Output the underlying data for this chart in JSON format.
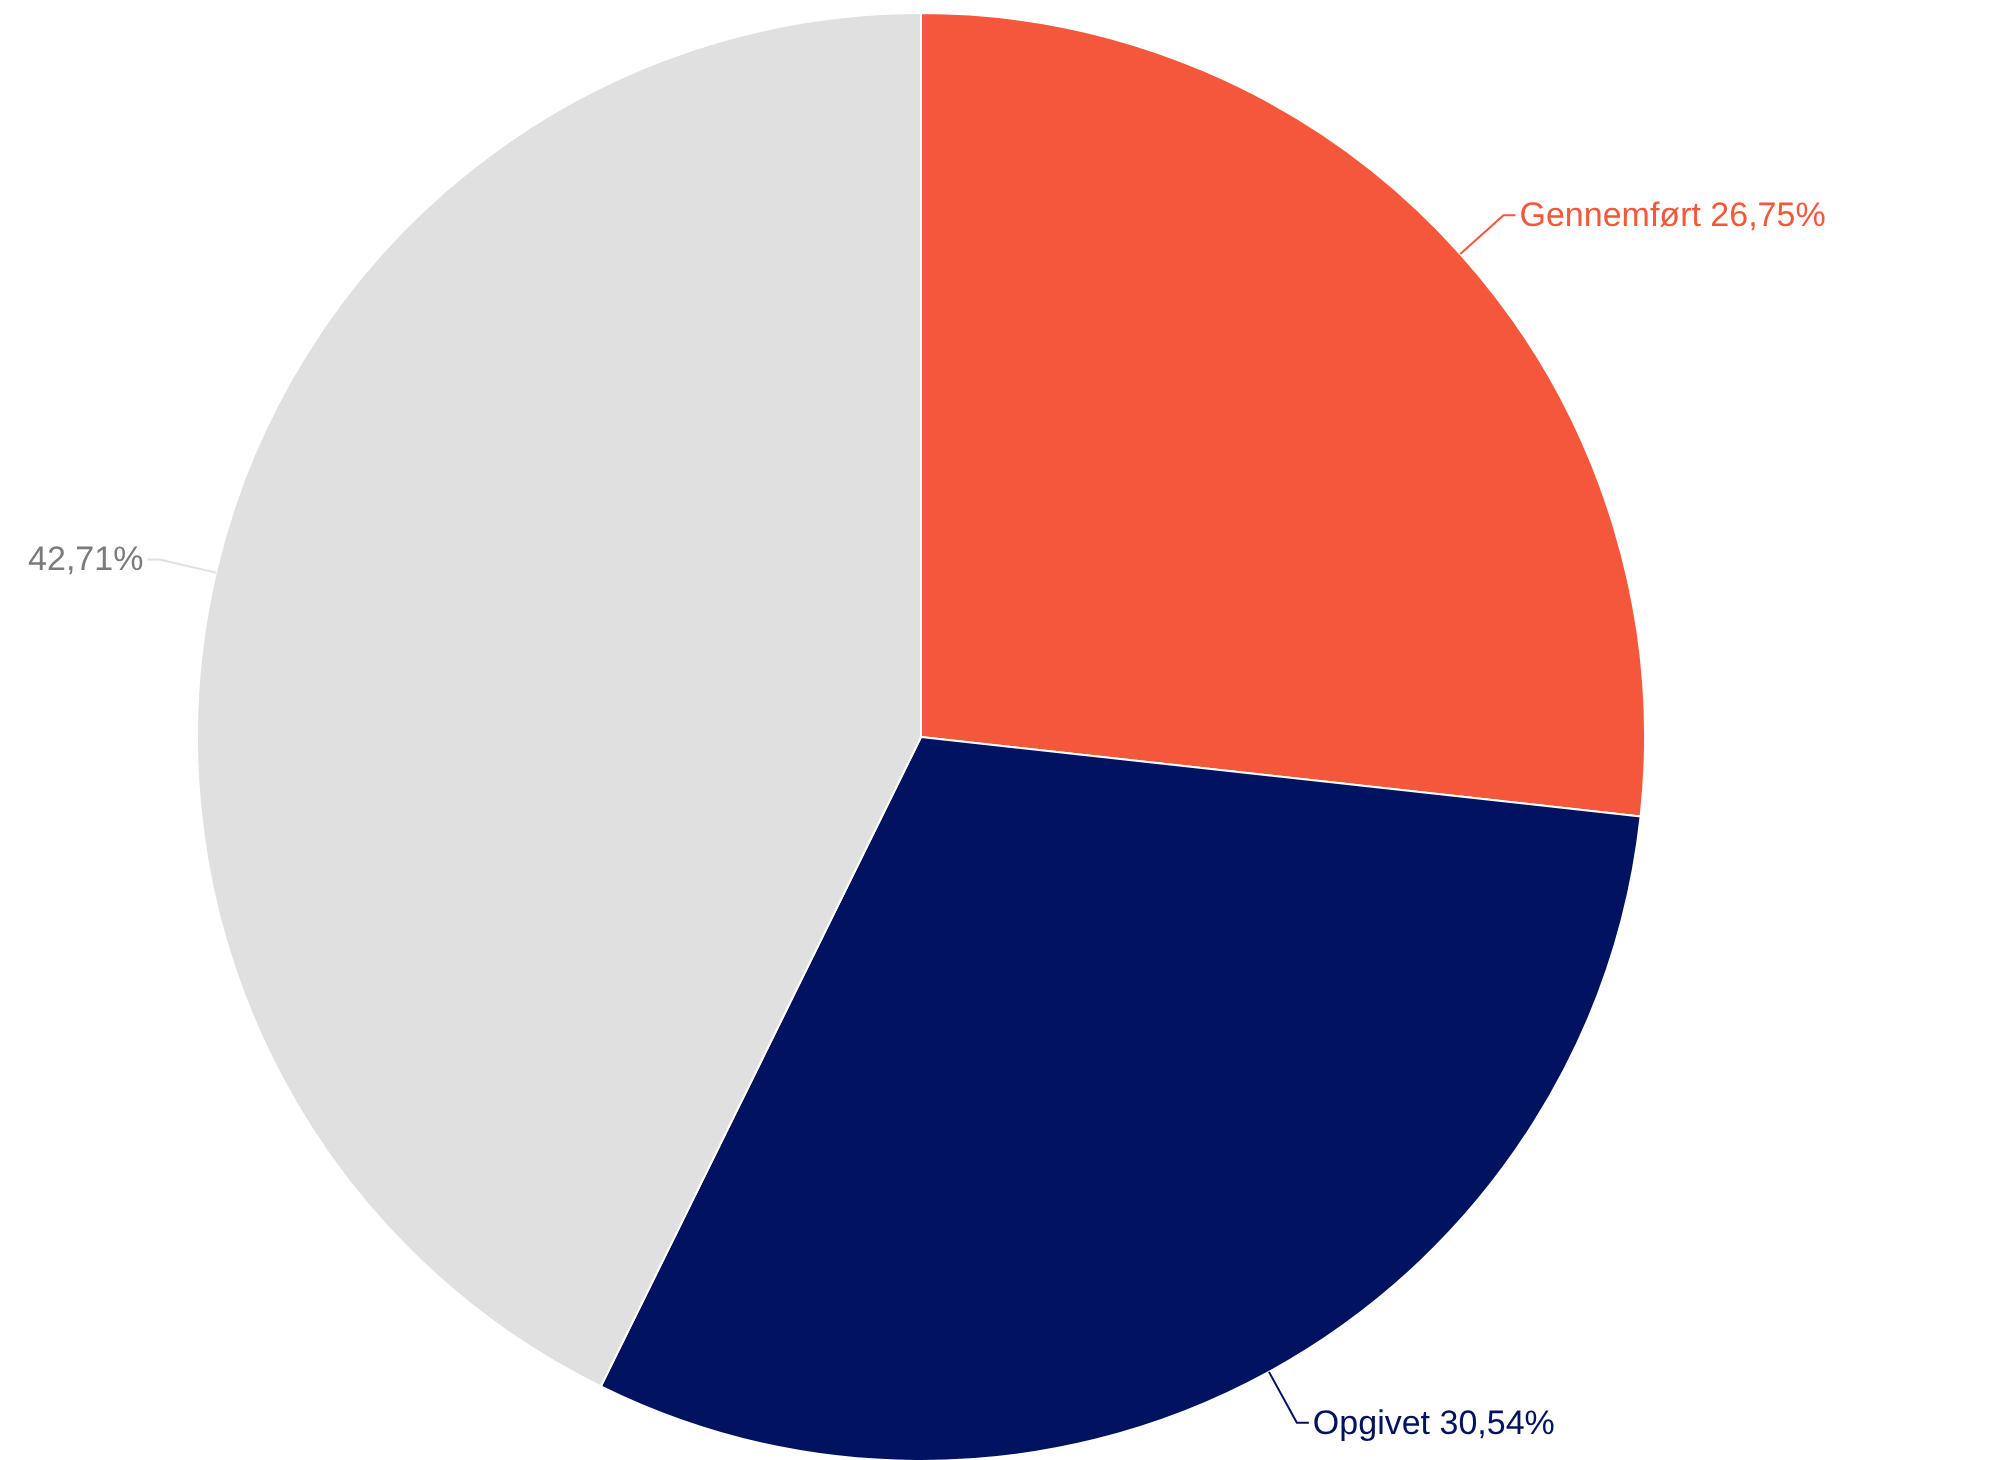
{
  "chart_data": {
    "type": "pie",
    "categories": [
      "Gennemført",
      "Opgivet",
      null
    ],
    "values": [
      26.75,
      30.54,
      42.71
    ],
    "colors": [
      "#f5573b",
      "#001260",
      "#e0e0e0"
    ],
    "value_labels": [
      "26,75%",
      "30,54%",
      "42,71%"
    ]
  }
}
